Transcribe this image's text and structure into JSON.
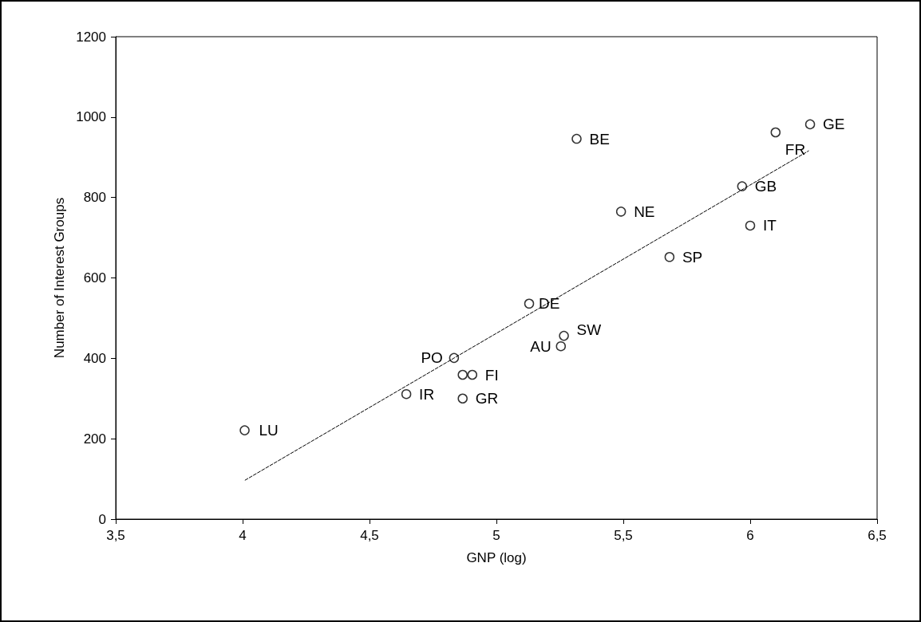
{
  "chart_data": {
    "type": "scatter",
    "xlabel": "GNP (log)",
    "ylabel": "Number of Interest Groups",
    "xlim": [
      3.5,
      6.5
    ],
    "xticks": [
      {
        "value": 3.5,
        "label": "3,5"
      },
      4,
      {
        "value": 4.5,
        "label": "4,5"
      },
      5,
      {
        "value": 5.5,
        "label": "5,5"
      },
      6,
      {
        "value": 6.5,
        "label": "6,5"
      }
    ],
    "ylim": [
      0,
      1200
    ],
    "yticks": [
      0,
      200,
      400,
      600,
      800,
      1000,
      1200
    ],
    "grid": false,
    "marker": "circle",
    "series": [
      {
        "type": "scatter",
        "color": "#000000",
        "x": [
          4.008,
          4.645,
          4.867,
          4.867,
          4.905,
          4.833,
          5.316,
          6.236,
          6.1,
          5.968,
          5.491,
          6.0,
          5.682,
          5.129,
          5.266,
          5.254
        ],
        "values": [
          221,
          311,
          300,
          359,
          359,
          401,
          946,
          982,
          962,
          828,
          765,
          730,
          652,
          536,
          456,
          430
        ]
      },
      {
        "type": "line",
        "color": "#000000",
        "line_style": "dashed",
        "marker": "none",
        "x": [
          4.01,
          6.23
        ],
        "values": [
          97,
          916
        ]
      }
    ],
    "annotations": [
      {
        "text": "LU",
        "x": 4.008,
        "y": 221
      },
      {
        "text": "IR",
        "x": 4.645,
        "y": 311
      },
      {
        "text": "GR",
        "x": 4.867,
        "y": 300
      },
      {
        "text": "FI",
        "x": 4.905,
        "y": 359
      },
      {
        "text": "PO",
        "x": 4.833,
        "y": 401
      },
      {
        "text": "BE",
        "x": 5.316,
        "y": 946
      },
      {
        "text": "GE",
        "x": 6.236,
        "y": 982
      },
      {
        "text": "FR",
        "x": 6.1,
        "y": 962
      },
      {
        "text": "GB",
        "x": 5.968,
        "y": 828
      },
      {
        "text": "NE",
        "x": 5.491,
        "y": 765
      },
      {
        "text": "IT",
        "x": 6.0,
        "y": 730
      },
      {
        "text": "SP",
        "x": 5.682,
        "y": 652
      },
      {
        "text": "DE",
        "x": 5.129,
        "y": 536
      },
      {
        "text": "SW",
        "x": 5.266,
        "y": 456
      },
      {
        "text": "AU",
        "x": 5.254,
        "y": 430
      }
    ]
  }
}
